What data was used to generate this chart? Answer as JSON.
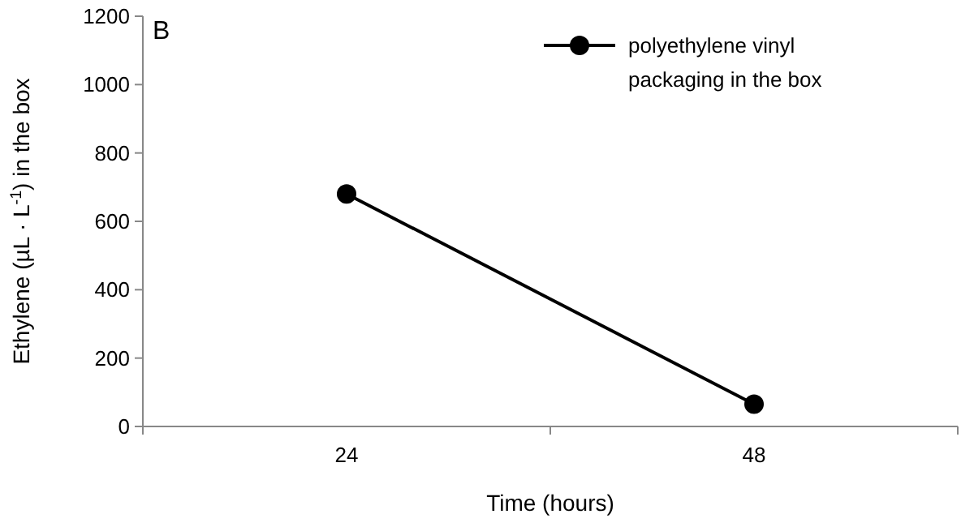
{
  "chart_data": {
    "type": "line",
    "xlabel": "Time (hours)",
    "ylabel": "Ethylene (µL · L$^{-1}$) in the box",
    "categories": [
      "24",
      "48"
    ],
    "series": [
      {
        "name": "polyethylene vinyl packaging in the box",
        "color": "#000000",
        "values": [
          680,
          65
        ]
      }
    ],
    "ylim": [
      0,
      1200
    ],
    "yticks": [
      0,
      200,
      400,
      600,
      800,
      1000,
      1200
    ],
    "grid": false,
    "legend": "top right",
    "marker": "circle",
    "line_style": "solid",
    "annotations": [
      "B"
    ]
  }
}
